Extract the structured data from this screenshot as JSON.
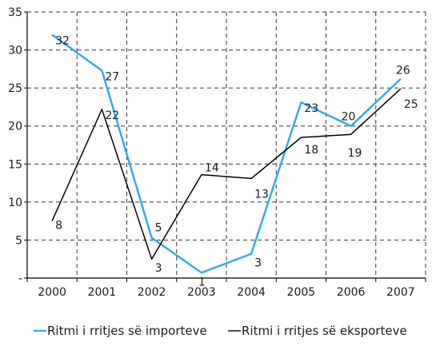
{
  "chart_data": {
    "type": "line",
    "categories": [
      "2000",
      "2001",
      "2002",
      "2003",
      "2004",
      "2005",
      "2006",
      "2007"
    ],
    "y_ticks": [
      "-",
      "5",
      "10",
      "15",
      "20",
      "25",
      "30",
      "35"
    ],
    "ylim": [
      0,
      35
    ],
    "grid": true,
    "legend_position": "bottom",
    "series": [
      {
        "name": "Ritmi i rritjes së importeve",
        "color": "#29abe2",
        "values": [
          32,
          27.3,
          5.3,
          0.7,
          3.2,
          23.1,
          20,
          26.2
        ],
        "labels": [
          "32",
          "27",
          "5",
          "1",
          "3",
          "23",
          "20",
          "26"
        ]
      },
      {
        "name": "Ritmi i rritjes së eksporteve",
        "color": "#000000",
        "values": [
          7.5,
          22.2,
          2.5,
          13.6,
          13.1,
          18.5,
          18.9,
          24.9
        ],
        "labels": [
          "8",
          "22",
          "3",
          "14",
          "13",
          "18",
          "19",
          "25"
        ]
      }
    ]
  }
}
